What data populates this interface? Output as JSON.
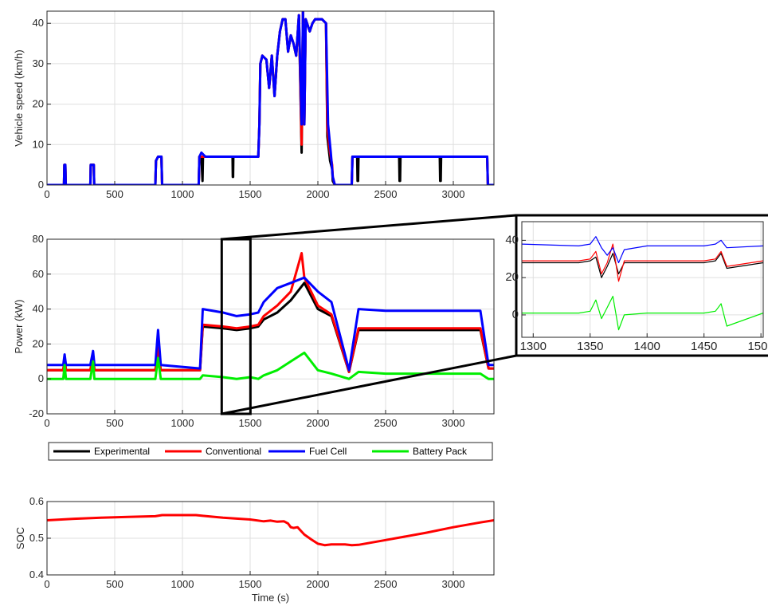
{
  "chart_data": [
    {
      "id": "speed",
      "type": "line",
      "title": "",
      "xlabel": "",
      "ylabel": "Vehicle speed (km/h)",
      "xlim": [
        0,
        3300
      ],
      "ylim": [
        0,
        43
      ],
      "xticks": [
        0,
        500,
        1000,
        1500,
        2000,
        2500,
        3000
      ],
      "yticks": [
        0,
        10,
        20,
        30,
        40
      ],
      "grid": true,
      "series": [
        {
          "name": "Experimental",
          "color": "#000000",
          "x": [
            0,
            125,
            128,
            135,
            138,
            320,
            323,
            345,
            348,
            800,
            805,
            820,
            845,
            850,
            1120,
            1125,
            1140,
            1148,
            1152,
            1170,
            1175,
            1370,
            1372,
            1374,
            1376,
            1560,
            1568,
            1575,
            1590,
            1620,
            1640,
            1660,
            1680,
            1700,
            1720,
            1740,
            1760,
            1780,
            1800,
            1820,
            1840,
            1860,
            1880,
            1890,
            1900,
            1910,
            1940,
            1960,
            1980,
            2030,
            2060,
            2070,
            2090,
            2105,
            2110,
            2125,
            2130,
            2250,
            2255,
            2290,
            2293,
            2297,
            2300,
            2600,
            2603,
            2607,
            2610,
            2900,
            2903,
            2907,
            2910,
            3250,
            3255,
            3300
          ],
          "y": [
            0,
            0,
            5,
            5,
            0,
            0,
            5,
            5,
            0,
            0,
            6,
            7,
            7,
            0,
            0,
            7,
            7,
            1,
            7,
            7,
            7,
            7,
            2,
            2,
            7,
            7,
            15,
            30,
            32,
            31,
            24,
            32,
            22,
            32,
            38,
            41,
            41,
            33,
            37,
            35,
            32,
            42,
            8,
            43,
            15,
            41,
            38,
            40,
            41,
            41,
            40,
            12,
            6,
            4,
            1,
            0,
            0,
            0,
            7,
            7,
            1,
            1,
            7,
            7,
            1,
            1,
            7,
            7,
            1,
            1,
            7,
            7,
            0,
            0
          ]
        },
        {
          "name": "Conventional",
          "color": "#ff0000",
          "x": [
            0,
            125,
            128,
            135,
            138,
            320,
            323,
            345,
            348,
            800,
            805,
            820,
            845,
            850,
            1120,
            1125,
            1140,
            1170,
            1560,
            1568,
            1575,
            1590,
            1620,
            1640,
            1660,
            1680,
            1700,
            1720,
            1740,
            1760,
            1780,
            1800,
            1820,
            1840,
            1860,
            1880,
            1890,
            1900,
            1910,
            1940,
            1960,
            1980,
            2030,
            2060,
            2070,
            2090,
            2105,
            2110,
            2125,
            2250,
            2255,
            3250,
            3255,
            3300
          ],
          "y": [
            0,
            0,
            5,
            5,
            0,
            0,
            5,
            5,
            0,
            0,
            6,
            7,
            7,
            0,
            0,
            7,
            7,
            7,
            7,
            15,
            30,
            32,
            31,
            24,
            32,
            22,
            32,
            38,
            41,
            41,
            33,
            37,
            35,
            32,
            42,
            10,
            43,
            15,
            41,
            38,
            40,
            41,
            41,
            40,
            14,
            8,
            5,
            2,
            0,
            0,
            7,
            7,
            0,
            0
          ]
        },
        {
          "name": "Fuel Cell",
          "color": "#0000ff",
          "x": [
            0,
            125,
            128,
            135,
            138,
            320,
            323,
            345,
            348,
            800,
            805,
            820,
            845,
            850,
            1120,
            1125,
            1140,
            1170,
            1560,
            1568,
            1575,
            1590,
            1620,
            1640,
            1660,
            1680,
            1700,
            1720,
            1740,
            1760,
            1780,
            1800,
            1820,
            1840,
            1860,
            1880,
            1890,
            1900,
            1910,
            1940,
            1960,
            1980,
            2030,
            2060,
            2075,
            2095,
            2110,
            2125,
            2250,
            2255,
            3250,
            3255,
            3300
          ],
          "y": [
            0,
            0,
            5,
            5,
            0,
            0,
            5,
            5,
            0,
            0,
            6,
            7,
            7,
            0,
            0,
            7,
            8,
            7,
            7,
            15,
            30,
            32,
            31,
            24,
            32,
            22,
            32,
            38,
            41,
            41,
            33,
            37,
            35,
            32,
            42,
            15,
            43,
            15,
            41,
            38,
            40,
            41,
            41,
            40,
            15,
            8,
            2,
            0,
            0,
            7,
            7,
            0,
            0
          ]
        }
      ]
    },
    {
      "id": "power",
      "type": "line",
      "title": "",
      "xlabel": "",
      "ylabel": "Power (kW)",
      "xlim": [
        0,
        3300
      ],
      "ylim": [
        -20,
        80
      ],
      "xticks": [
        0,
        500,
        1000,
        1500,
        2000,
        2500,
        3000
      ],
      "yticks": [
        -20,
        0,
        20,
        40,
        60,
        80
      ],
      "grid": true,
      "series": [
        {
          "name": "Experimental",
          "color": "#000000",
          "x": [
            0,
            120,
            130,
            140,
            320,
            340,
            350,
            800,
            820,
            840,
            1130,
            1150,
            1300,
            1400,
            1500,
            1560,
            1600,
            1700,
            1800,
            1900,
            2000,
            2100,
            2230,
            2300,
            2500,
            2700,
            2900,
            3200,
            3260,
            3300
          ],
          "y": [
            5,
            5,
            11,
            5,
            5,
            13,
            5,
            5,
            16,
            5,
            5,
            30,
            29,
            28,
            29,
            30,
            34,
            38,
            45,
            55,
            40,
            36,
            4,
            28,
            28,
            28,
            28,
            28,
            6,
            6
          ]
        },
        {
          "name": "Conventional",
          "color": "#ff0000",
          "x": [
            0,
            120,
            130,
            140,
            320,
            340,
            350,
            800,
            820,
            840,
            1130,
            1150,
            1300,
            1400,
            1500,
            1560,
            1600,
            1700,
            1800,
            1880,
            1900,
            2000,
            2100,
            2230,
            2300,
            2500,
            2700,
            2900,
            3200,
            3260,
            3300
          ],
          "y": [
            5,
            5,
            12,
            5,
            5,
            14,
            5,
            5,
            18,
            5,
            5,
            31,
            30,
            29,
            30,
            31,
            36,
            42,
            50,
            72,
            58,
            42,
            37,
            4,
            29,
            29,
            29,
            29,
            29,
            6,
            6
          ]
        },
        {
          "name": "Fuel Cell",
          "color": "#0000ff",
          "x": [
            0,
            120,
            130,
            140,
            320,
            340,
            350,
            800,
            820,
            840,
            1130,
            1150,
            1300,
            1400,
            1500,
            1560,
            1600,
            1700,
            1800,
            1900,
            2000,
            2100,
            2230,
            2300,
            2500,
            2700,
            2900,
            3200,
            3260,
            3300
          ],
          "y": [
            8,
            8,
            14,
            8,
            8,
            16,
            8,
            8,
            28,
            8,
            6,
            40,
            38,
            36,
            37,
            38,
            44,
            52,
            55,
            58,
            50,
            44,
            5,
            40,
            39,
            39,
            39,
            39,
            8,
            8
          ]
        },
        {
          "name": "Battery Pack",
          "color": "#00ee00",
          "x": [
            0,
            120,
            130,
            140,
            320,
            340,
            350,
            800,
            820,
            840,
            1130,
            1150,
            1300,
            1400,
            1500,
            1560,
            1600,
            1700,
            1800,
            1900,
            2000,
            2100,
            2230,
            2300,
            2500,
            2700,
            2900,
            3200,
            3260,
            3300
          ],
          "y": [
            0,
            0,
            8,
            0,
            0,
            10,
            0,
            0,
            12,
            0,
            0,
            2,
            1,
            0,
            1,
            0,
            2,
            5,
            10,
            15,
            5,
            3,
            0,
            4,
            3,
            3,
            3,
            3,
            0,
            0
          ]
        }
      ]
    },
    {
      "id": "inset",
      "type": "line",
      "title": "",
      "xlabel": "",
      "ylabel": "",
      "xlim": [
        1290,
        1502
      ],
      "ylim": [
        -12,
        50
      ],
      "xticks": [
        1300,
        1350,
        1400,
        1450,
        1500
      ],
      "yticks": [
        0,
        20,
        40
      ],
      "grid": true,
      "series": [
        {
          "name": "Experimental",
          "color": "#000000",
          "x": [
            1290,
            1340,
            1350,
            1355,
            1360,
            1365,
            1370,
            1375,
            1380,
            1400,
            1450,
            1460,
            1465,
            1470,
            1502
          ],
          "y": [
            28,
            28,
            29,
            31,
            20,
            26,
            33,
            22,
            28,
            28,
            28,
            29,
            33,
            25,
            28
          ]
        },
        {
          "name": "Conventional",
          "color": "#ff0000",
          "x": [
            1290,
            1340,
            1350,
            1355,
            1360,
            1365,
            1370,
            1375,
            1380,
            1400,
            1450,
            1460,
            1465,
            1470,
            1502
          ],
          "y": [
            29,
            29,
            30,
            34,
            22,
            28,
            38,
            18,
            29,
            29,
            29,
            30,
            34,
            26,
            29
          ]
        },
        {
          "name": "Fuel Cell",
          "color": "#0000ff",
          "x": [
            1290,
            1340,
            1350,
            1355,
            1360,
            1365,
            1370,
            1375,
            1380,
            1400,
            1450,
            1460,
            1465,
            1470,
            1502
          ],
          "y": [
            38,
            37,
            38,
            42,
            36,
            32,
            36,
            28,
            35,
            37,
            37,
            38,
            40,
            36,
            37
          ]
        },
        {
          "name": "Battery Pack",
          "color": "#00ee00",
          "x": [
            1290,
            1340,
            1350,
            1355,
            1360,
            1365,
            1370,
            1375,
            1380,
            1400,
            1450,
            1460,
            1465,
            1470,
            1502
          ],
          "y": [
            1,
            1,
            2,
            8,
            -2,
            4,
            10,
            -8,
            0,
            1,
            1,
            2,
            6,
            -6,
            1
          ]
        }
      ]
    },
    {
      "id": "soc",
      "type": "line",
      "title": "",
      "xlabel": "Time (s)",
      "ylabel": "SOC",
      "xlim": [
        0,
        3300
      ],
      "ylim": [
        0.4,
        0.6
      ],
      "xticks": [
        0,
        500,
        1000,
        1500,
        2000,
        2500,
        3000
      ],
      "yticks": [
        0.4,
        0.5,
        0.6
      ],
      "grid": true,
      "series": [
        {
          "name": "Conventional",
          "color": "#ff0000",
          "x": [
            0,
            200,
            400,
            600,
            800,
            850,
            900,
            1000,
            1100,
            1150,
            1300,
            1500,
            1600,
            1650,
            1700,
            1750,
            1780,
            1800,
            1820,
            1850,
            1900,
            1950,
            2000,
            2050,
            2100,
            2200,
            2250,
            2300,
            2500,
            2800,
            3000,
            3200,
            3300
          ],
          "y": [
            0.549,
            0.553,
            0.556,
            0.558,
            0.56,
            0.563,
            0.563,
            0.563,
            0.563,
            0.561,
            0.556,
            0.551,
            0.546,
            0.548,
            0.545,
            0.546,
            0.54,
            0.53,
            0.528,
            0.53,
            0.51,
            0.497,
            0.485,
            0.481,
            0.483,
            0.483,
            0.481,
            0.482,
            0.495,
            0.515,
            0.53,
            0.543,
            0.549
          ]
        }
      ]
    }
  ],
  "legend": {
    "placement": "below middle plot",
    "entries": [
      {
        "label": "Experimental",
        "color": "#000000"
      },
      {
        "label": "Conventional",
        "color": "#ff0000"
      },
      {
        "label": "Fuel Cell",
        "color": "#0000ff"
      },
      {
        "label": "Battery Pack",
        "color": "#00ee00"
      }
    ]
  }
}
